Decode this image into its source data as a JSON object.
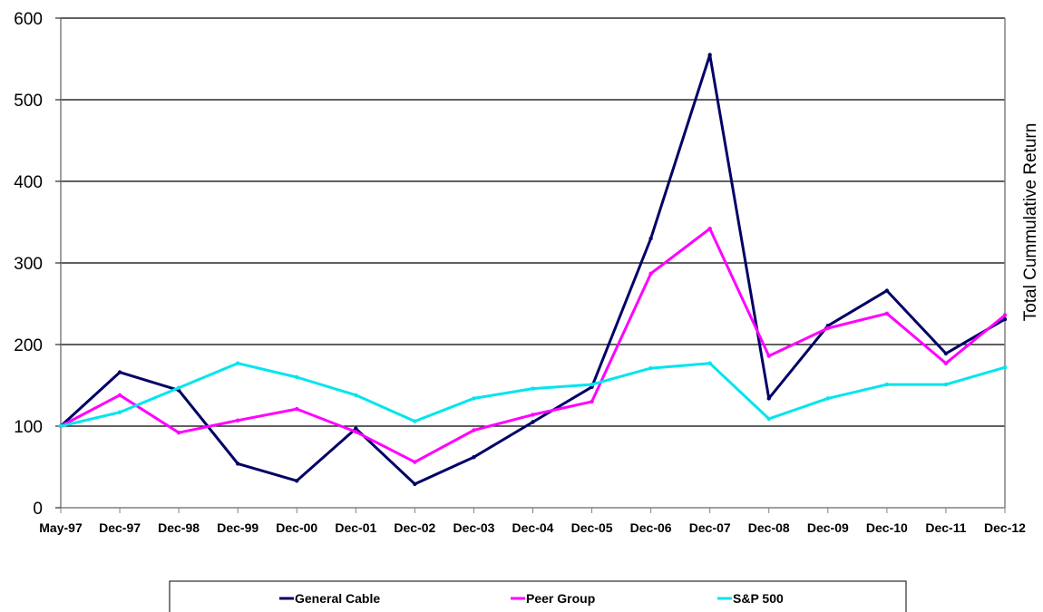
{
  "chart_data": {
    "type": "line",
    "title": "",
    "xlabel": "",
    "ylabel": "Total Cummulative Return",
    "ylim": [
      0,
      600
    ],
    "yticks": [
      0,
      100,
      200,
      300,
      400,
      500,
      600
    ],
    "grid": "horizontal",
    "legend_position": "bottom",
    "categories": [
      "May-97",
      "Dec-97",
      "Dec-98",
      "Dec-99",
      "Dec-00",
      "Dec-01",
      "Dec-02",
      "Dec-03",
      "Dec-04",
      "Dec-05",
      "Dec-06",
      "Dec-07",
      "Dec-08",
      "Dec-09",
      "Dec-10",
      "Dec-11",
      "Dec-12"
    ],
    "series": [
      {
        "name": "General Cable",
        "color": "#000066",
        "values": [
          100,
          166,
          144,
          54,
          33,
          97,
          29,
          62,
          105,
          148,
          330,
          555,
          134,
          223,
          266,
          189,
          231
        ]
      },
      {
        "name": "Peer Group",
        "color": "#ff00ff",
        "values": [
          100,
          138,
          92,
          107,
          121,
          93,
          56,
          95,
          114,
          130,
          287,
          342,
          186,
          220,
          238,
          177,
          236
        ]
      },
      {
        "name": "S&P 500",
        "color": "#00e5ee",
        "values": [
          100,
          117,
          147,
          177,
          160,
          138,
          106,
          134,
          146,
          151,
          171,
          177,
          109,
          134,
          151,
          151,
          172
        ]
      }
    ]
  }
}
